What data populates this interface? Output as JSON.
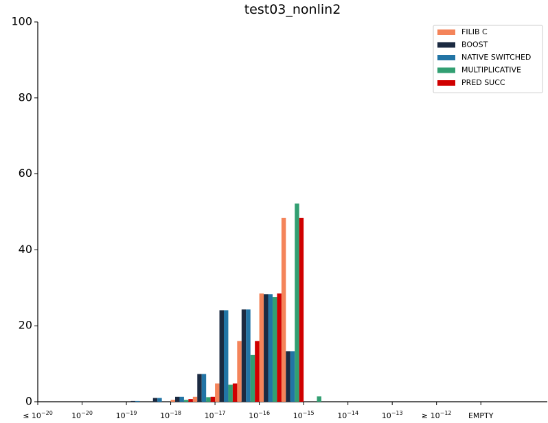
{
  "chart_data": {
    "type": "bar",
    "title": "test03_nonlin2",
    "categories": [
      {
        "base": "≤ 10",
        "exp": "−20"
      },
      null,
      {
        "base": "10",
        "exp": "−20"
      },
      null,
      {
        "base": "10",
        "exp": "−19"
      },
      null,
      {
        "base": "10",
        "exp": "−18"
      },
      null,
      {
        "base": "10",
        "exp": "−17"
      },
      null,
      {
        "base": "10",
        "exp": "−16"
      },
      null,
      {
        "base": "10",
        "exp": "−15"
      },
      null,
      {
        "base": "10",
        "exp": "−14"
      },
      null,
      {
        "base": "10",
        "exp": "−13"
      },
      null,
      {
        "base": "≥ 10",
        "exp": "−12"
      },
      null,
      "EMPTY",
      null,
      null
    ],
    "series": [
      {
        "name": "FILIB C",
        "color": "#f4845a",
        "values": [
          0,
          0,
          0,
          0,
          0,
          0,
          0.5,
          1.3,
          4.8,
          16,
          28.5,
          48.4,
          0,
          0,
          0,
          0,
          0,
          0,
          0,
          0,
          0,
          0,
          0
        ]
      },
      {
        "name": "BOOST",
        "color": "#1b2a41",
        "values": [
          0,
          0,
          0,
          0,
          0.2,
          1,
          1.3,
          7.3,
          24.1,
          24.3,
          28.3,
          13.3,
          0,
          0,
          0,
          0,
          0,
          0,
          0,
          0,
          0,
          0,
          0
        ]
      },
      {
        "name": "NATIVE SWITCHED",
        "color": "#2274a5",
        "values": [
          0,
          0,
          0,
          0,
          0.2,
          1,
          1.3,
          7.3,
          24.1,
          24.3,
          28.3,
          13.3,
          0,
          0,
          0,
          0,
          0,
          0,
          0,
          0,
          0,
          0,
          0
        ]
      },
      {
        "name": "MULTIPLICATIVE",
        "color": "#329f72",
        "values": [
          0,
          0,
          0,
          0,
          0,
          0,
          0.5,
          1.2,
          4.5,
          12.3,
          27.6,
          52.2,
          1.4,
          0,
          0,
          0,
          0,
          0,
          0,
          0,
          0,
          0,
          0
        ]
      },
      {
        "name": "PRED SUCC",
        "color": "#d00000",
        "values": [
          0,
          0,
          0,
          0,
          0,
          0,
          0.7,
          1.3,
          4.8,
          16,
          28.5,
          48.4,
          0,
          0,
          0,
          0,
          0,
          0,
          0,
          0,
          0,
          0,
          0
        ]
      }
    ],
    "ylim": [
      0,
      100
    ],
    "yticks": [
      0,
      20,
      40,
      60,
      80,
      100
    ],
    "grid": false,
    "legend": "upper right"
  }
}
